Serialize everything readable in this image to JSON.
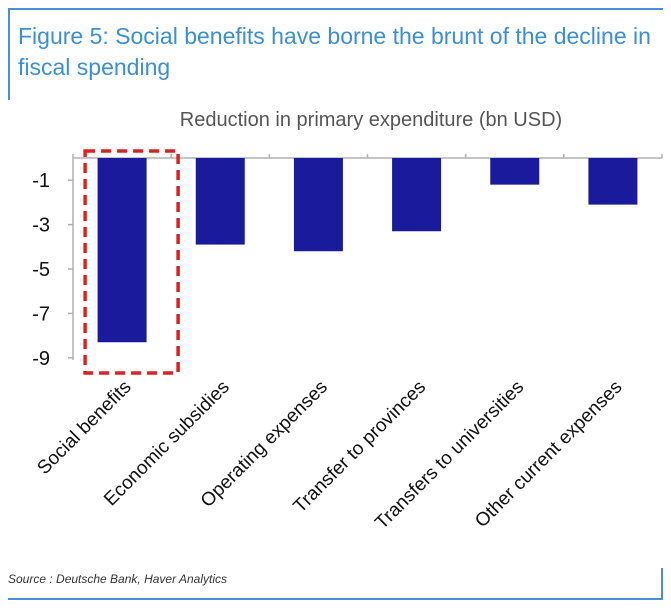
{
  "figure": {
    "title": "Figure 5: Social benefits have borne the brunt of the decline in fiscal spending",
    "source": "Source : Deutsche Bank, Haver Analytics"
  },
  "colors": {
    "accent": "#3a8fd6",
    "bar": "#1a1a9c",
    "highlight": "#e02020",
    "axis": "#b0b0b0"
  },
  "chart_data": {
    "type": "bar",
    "title": "Reduction in primary expenditure (bn USD)",
    "xlabel": "",
    "ylabel": "",
    "categories": [
      "Social benefits",
      "Economic subsidies",
      "Operating expenses",
      "Transfer to provinces",
      "Transfers to universities",
      "Other current expenses"
    ],
    "values": [
      -8.3,
      -3.9,
      -4.2,
      -3.3,
      -1.2,
      -2.1
    ],
    "ylim": [
      -10,
      0
    ],
    "yticks": [
      -1,
      -3,
      -5,
      -7,
      -9
    ],
    "highlighted_category": "Social benefits"
  }
}
